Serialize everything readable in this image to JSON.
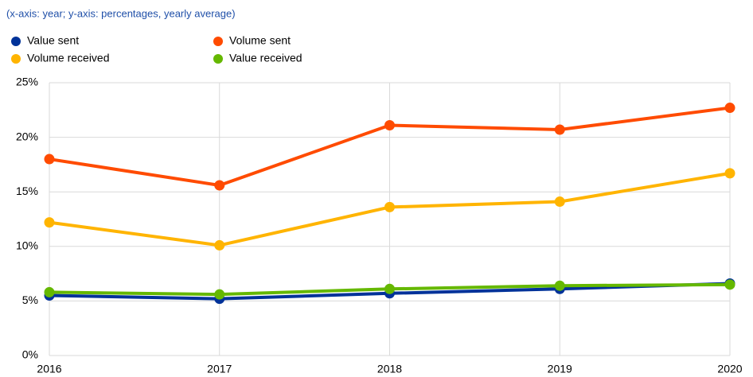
{
  "chart_data": {
    "type": "line",
    "subtitle": "(x-axis: year; y-axis: percentages, yearly average)",
    "x": [
      2016,
      2017,
      2018,
      2019,
      2020
    ],
    "series": [
      {
        "name": "Value sent",
        "color": "#003299",
        "values": [
          5.5,
          5.2,
          5.7,
          6.1,
          6.6
        ]
      },
      {
        "name": "Volume sent",
        "color": "#ff4b00",
        "values": [
          18.0,
          15.6,
          21.1,
          20.7,
          22.7
        ]
      },
      {
        "name": "Volume received",
        "color": "#ffb400",
        "values": [
          12.2,
          10.1,
          13.6,
          14.1,
          16.7
        ]
      },
      {
        "name": "Value received",
        "color": "#65b800",
        "values": [
          5.8,
          5.6,
          6.1,
          6.4,
          6.5
        ]
      }
    ],
    "xlim": [
      2016,
      2020
    ],
    "xticks": [
      2016,
      2017,
      2018,
      2019,
      2020
    ],
    "ylim": [
      0,
      25
    ],
    "yticks": [
      {
        "value": 0,
        "label": "0%"
      },
      {
        "value": 5,
        "label": "5%"
      },
      {
        "value": 10,
        "label": "10%"
      },
      {
        "value": 15,
        "label": "15%"
      },
      {
        "value": 20,
        "label": "20%"
      },
      {
        "value": 25,
        "label": "25%"
      }
    ],
    "grid": true
  }
}
